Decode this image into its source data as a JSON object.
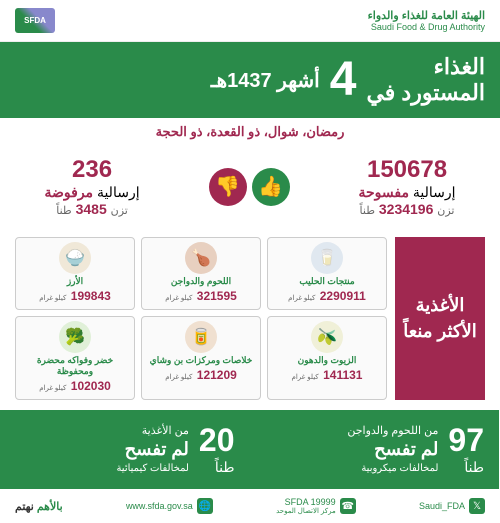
{
  "header": {
    "org_ar": "الهيئة العامة للغذاء والدواء",
    "org_en": "Saudi Food & Drug Authority",
    "logo_text": "SFDA"
  },
  "title": {
    "line1": "الغذاء",
    "line2_a": "المستورد في",
    "big_number": "4",
    "line2_b": "أشهر 1437هـ"
  },
  "subtitle": "رمضان، شوال، ذو القعدة، ذو الحجة",
  "stats": {
    "approved": {
      "count": "150678",
      "label_a": "إرسالية",
      "label_b": "مفسوحة",
      "weight": "3234196",
      "weight_unit": "طناً",
      "weight_prefix": "تزن"
    },
    "rejected": {
      "count": "236",
      "label_a": "إرسالية",
      "label_b": "مرفوضة",
      "weight": "3485",
      "weight_unit": "طناً",
      "weight_prefix": "تزن"
    }
  },
  "side_label": "الأغذية الأكثر منعاً",
  "foods": [
    {
      "icon": "🥛",
      "name": "منتجات الحليب",
      "value": "2290911",
      "unit": "كيلو غرام",
      "bg": "ic3"
    },
    {
      "icon": "🍗",
      "name": "اللحوم والدواجن",
      "value": "321595",
      "unit": "كيلو غرام",
      "bg": "ic2"
    },
    {
      "icon": "🍚",
      "name": "الأرز",
      "value": "199843",
      "unit": "كيلو غرام",
      "bg": "ic1"
    },
    {
      "icon": "🫒",
      "name": "الزيوت والدهون",
      "value": "141131",
      "unit": "كيلو غرام",
      "bg": "ic6"
    },
    {
      "icon": "🥫",
      "name": "خلاصات ومركزات بن وشاي",
      "value": "121209",
      "unit": "كيلو غرام",
      "bg": "ic5"
    },
    {
      "icon": "🥦",
      "name": "خضر وفواكه محضرة ومحفوظة",
      "value": "102030",
      "unit": "كيلو غرام",
      "bg": "ic4"
    }
  ],
  "bottom": [
    {
      "num": "97",
      "unit": "طناً",
      "from": "من اللحوم والدواجن",
      "status": "لم تفسح",
      "reason": "لمخالفات ميكروبية"
    },
    {
      "num": "20",
      "unit": "طناً",
      "from": "من الأغذية",
      "status": "لم تفسح",
      "reason": "لمخالفات كيميائية"
    }
  ],
  "footer": {
    "website": "www.sfda.gov.sa",
    "phone_label": "SFDA 19999",
    "phone_sub": "مركز الاتصال الموحد",
    "social": "Saudi_FDA",
    "slogan_a": "بالأهم",
    "slogan_b": "نهتم"
  },
  "colors": {
    "green": "#2a8b4a",
    "maroon": "#a02850"
  }
}
